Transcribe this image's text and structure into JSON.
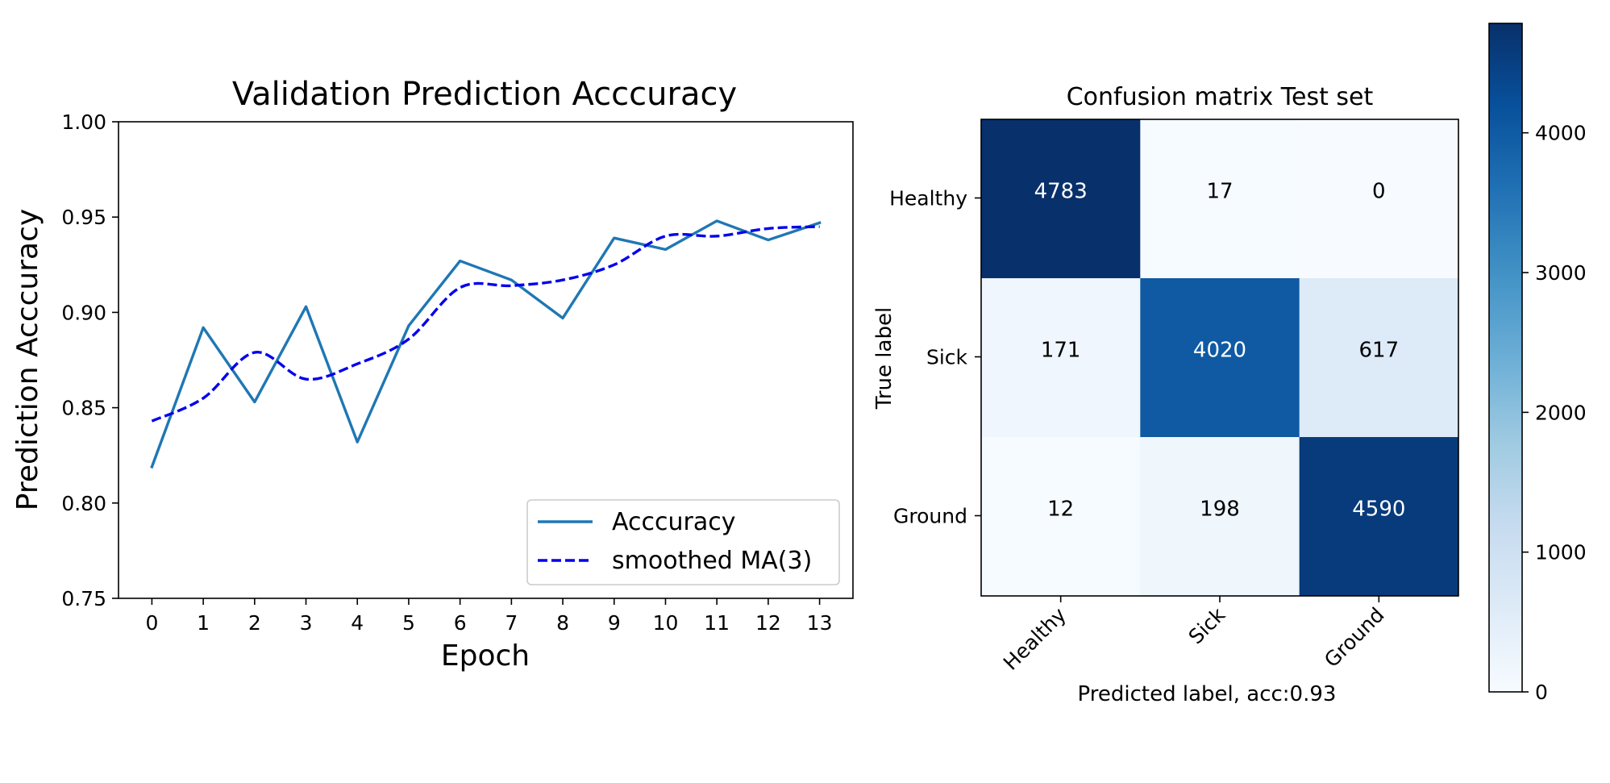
{
  "chart_data": [
    {
      "type": "line",
      "title": "Validation Prediction Acccuracy",
      "xlabel": "Epoch",
      "ylabel": "Prediction Acccuracy",
      "x": [
        0,
        1,
        2,
        3,
        4,
        5,
        6,
        7,
        8,
        9,
        10,
        11,
        12,
        13
      ],
      "xlim": [
        -0.65,
        13.65
      ],
      "ylim": [
        0.75,
        1.0
      ],
      "yticks": [
        0.75,
        0.8,
        0.85,
        0.9,
        0.95,
        1.0
      ],
      "ytick_labels": [
        "0.75",
        "0.80",
        "0.85",
        "0.90",
        "0.95",
        "1.00"
      ],
      "legend_position": "lower right",
      "grid": false,
      "series": [
        {
          "name": "Acccuracy",
          "style": "solid",
          "color": "#1f77b4",
          "values": [
            0.819,
            0.892,
            0.853,
            0.903,
            0.832,
            0.893,
            0.927,
            0.917,
            0.897,
            0.939,
            0.933,
            0.948,
            0.938,
            0.947
          ]
        },
        {
          "name": "smoothed MA(3)",
          "style": "dashed",
          "color": "#0000ee",
          "values": [
            0.843,
            0.855,
            0.879,
            0.865,
            0.873,
            0.886,
            0.913,
            0.914,
            0.917,
            0.925,
            0.94,
            0.94,
            0.944,
            0.945
          ]
        }
      ]
    },
    {
      "type": "heatmap",
      "title": "Confusion matrix  Test set",
      "xlabel": "Predicted label, acc:0.93",
      "ylabel": "True label",
      "x_categories": [
        "Healthy",
        "Sick",
        "Ground"
      ],
      "y_categories": [
        "Healthy",
        "Sick",
        "Ground"
      ],
      "values": [
        [
          4783,
          17,
          0
        ],
        [
          171,
          4020,
          617
        ],
        [
          12,
          198,
          4590
        ]
      ],
      "colormap": "Blues",
      "colorbar": {
        "range": [
          0,
          4783
        ],
        "ticks": [
          0,
          1000,
          2000,
          3000,
          4000
        ]
      }
    }
  ]
}
